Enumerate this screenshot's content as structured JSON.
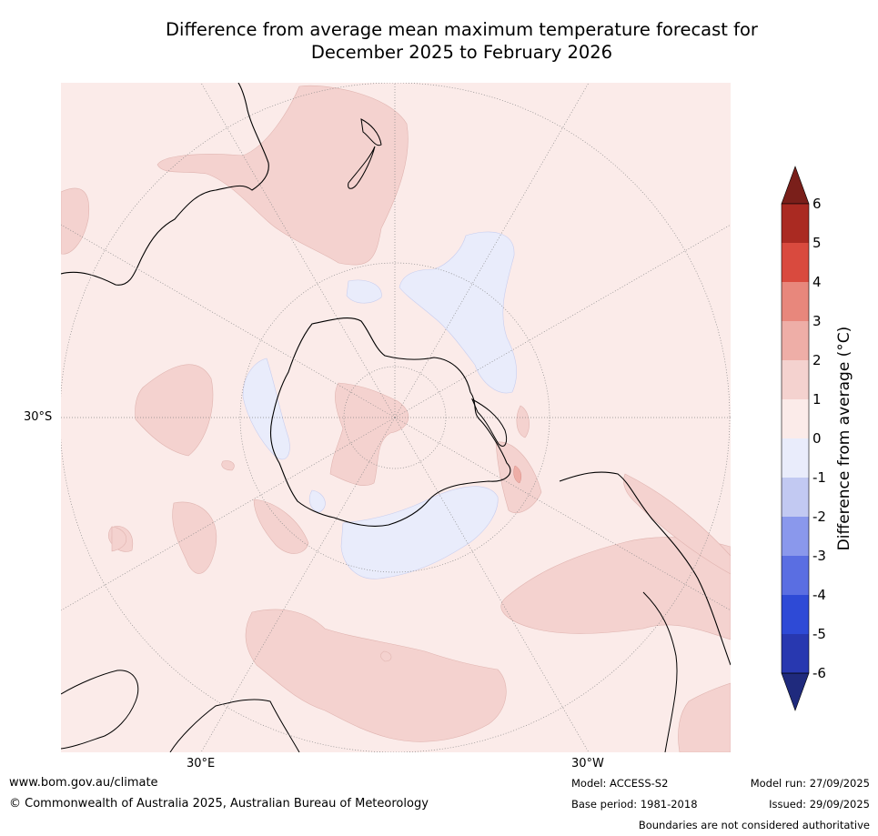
{
  "title": {
    "line1": "Difference from average mean maximum temperature forecast for",
    "line2": "December 2025 to February 2026"
  },
  "map_labels": {
    "lat_label": "30°S",
    "lon_east_label": "30°E",
    "lon_west_label": "30°W"
  },
  "colorbar": {
    "title": "Difference from average (°C)",
    "ticks": [
      "6",
      "5",
      "4",
      "3",
      "2",
      "1",
      "0",
      "-1",
      "-2",
      "-3",
      "-4",
      "-5",
      "-6"
    ],
    "colors": {
      "over": "#7a1f1a",
      "c5_6": "#aa2a22",
      "c4_5": "#d94a3e",
      "c3_4": "#e8877c",
      "c2_3": "#eeaea7",
      "c1_2": "#f4d2cf",
      "c0_1": "#fbebe9",
      "cm1_0": "#e9ecfb",
      "cm2_m1": "#c2c9f2",
      "cm3_m2": "#8a98ec",
      "cm4_m3": "#5a6ee2",
      "cm5_m4": "#2e4ad6",
      "cm6_m5": "#2838b0",
      "under": "#1f2a7d"
    }
  },
  "footer": {
    "website": "www.bom.gov.au/climate",
    "copyright": "© Commonwealth of Australia 2025, Australian Bureau of Meteorology",
    "model": "Model: ACCESS-S2",
    "base_period": "Base period: 1981-2018",
    "model_run": "Model run: 27/09/2025",
    "issued": "Issued: 29/09/2025",
    "disclaimer": "Boundaries are not considered authoritative"
  }
}
